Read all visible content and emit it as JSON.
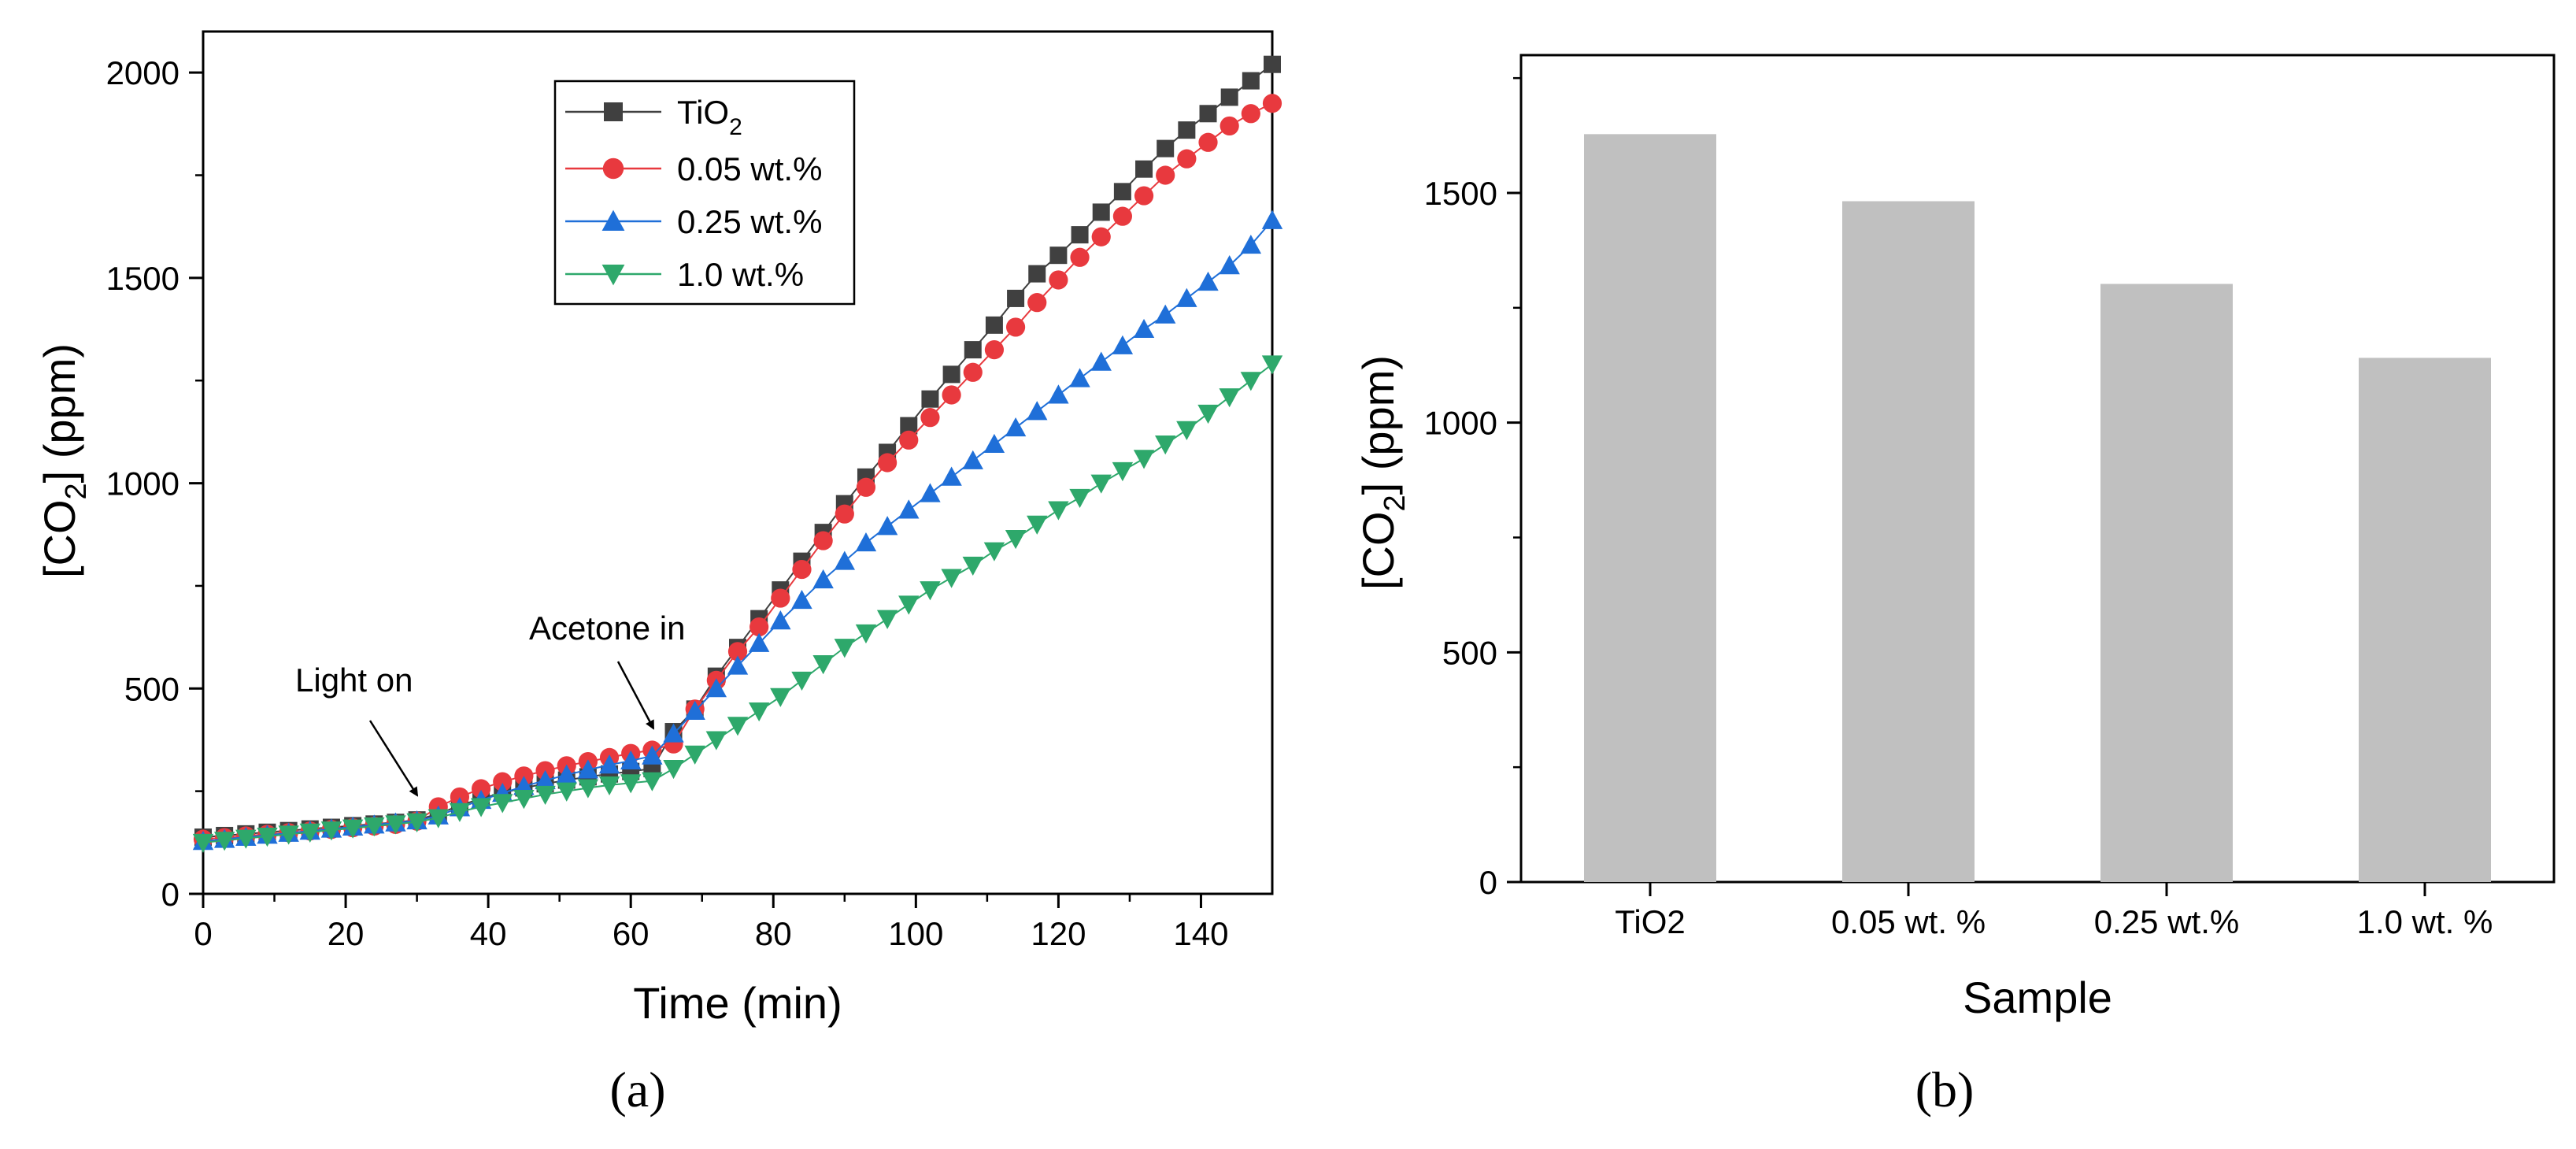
{
  "chart_data": [
    {
      "type": "line",
      "panel_label": "(a)",
      "xlabel": "Time (min)",
      "ylabel_prefix": "[CO",
      "ylabel_sub": "2",
      "ylabel_suffix": "] (ppm)",
      "xlim": [
        0,
        150
      ],
      "ylim": [
        0,
        2100
      ],
      "xticks": [
        0,
        20,
        40,
        60,
        80,
        100,
        120,
        140
      ],
      "yticks": [
        0,
        500,
        1000,
        1500,
        2000
      ],
      "legend_position": "top-center",
      "annotations": [
        {
          "text": "Light on",
          "at": [
            31,
            175
          ],
          "label_at": [
            19,
            505
          ]
        },
        {
          "text": "Acetone in",
          "at": [
            65,
            395
          ],
          "label_at": [
            61,
            640
          ]
        }
      ],
      "series": [
        {
          "name": "TiO2",
          "label_main": "TiO",
          "label_sub": "2",
          "color": "#404040",
          "marker": "square",
          "x": [
            0,
            3,
            6,
            9,
            12,
            15,
            18,
            21,
            24,
            27,
            30,
            33,
            36,
            39,
            42,
            45,
            48,
            51,
            54,
            57,
            60,
            63,
            66,
            69,
            72,
            75,
            78,
            81,
            84,
            87,
            90,
            93,
            96,
            99,
            102,
            105,
            108,
            111,
            114,
            117,
            120,
            123,
            126,
            129,
            132,
            135,
            138,
            141,
            144,
            147,
            150
          ],
          "y": [
            138,
            142,
            146,
            150,
            154,
            158,
            162,
            166,
            170,
            174,
            180,
            195,
            215,
            232,
            246,
            258,
            268,
            277,
            285,
            292,
            298,
            305,
            395,
            450,
            530,
            600,
            670,
            740,
            810,
            880,
            950,
            1015,
            1075,
            1140,
            1205,
            1265,
            1325,
            1385,
            1450,
            1510,
            1555,
            1605,
            1660,
            1710,
            1765,
            1815,
            1860,
            1900,
            1940,
            1980,
            2020
          ]
        },
        {
          "name": "0.05 wt.%",
          "color": "#e8393e",
          "marker": "circle",
          "x": [
            0,
            3,
            6,
            9,
            12,
            15,
            18,
            21,
            24,
            27,
            30,
            33,
            36,
            39,
            42,
            45,
            48,
            51,
            54,
            57,
            60,
            63,
            66,
            69,
            72,
            75,
            78,
            81,
            84,
            87,
            90,
            93,
            96,
            99,
            102,
            105,
            108,
            111,
            114,
            117,
            120,
            123,
            126,
            129,
            132,
            135,
            138,
            141,
            144,
            147,
            150
          ],
          "y": [
            133,
            137,
            141,
            145,
            149,
            153,
            157,
            161,
            165,
            169,
            177,
            212,
            236,
            256,
            273,
            287,
            300,
            312,
            322,
            332,
            342,
            350,
            365,
            450,
            520,
            590,
            650,
            720,
            790,
            860,
            925,
            990,
            1050,
            1105,
            1160,
            1215,
            1270,
            1325,
            1380,
            1440,
            1495,
            1550,
            1600,
            1650,
            1700,
            1750,
            1790,
            1830,
            1870,
            1900,
            1925
          ]
        },
        {
          "name": "0.25 wt.%",
          "color": "#1f6fd8",
          "marker": "triangle-up",
          "x": [
            0,
            3,
            6,
            9,
            12,
            15,
            18,
            21,
            24,
            27,
            30,
            33,
            36,
            39,
            42,
            45,
            48,
            51,
            54,
            57,
            60,
            63,
            66,
            69,
            72,
            75,
            78,
            81,
            84,
            87,
            90,
            93,
            96,
            99,
            102,
            105,
            108,
            111,
            114,
            117,
            120,
            123,
            126,
            129,
            132,
            135,
            138,
            141,
            144,
            147,
            150
          ],
          "y": [
            128,
            133,
            138,
            143,
            148,
            153,
            158,
            163,
            168,
            173,
            178,
            190,
            210,
            228,
            245,
            262,
            276,
            290,
            302,
            314,
            324,
            336,
            390,
            445,
            500,
            555,
            610,
            665,
            715,
            765,
            810,
            855,
            895,
            935,
            975,
            1015,
            1055,
            1095,
            1135,
            1175,
            1215,
            1255,
            1295,
            1335,
            1375,
            1410,
            1450,
            1490,
            1530,
            1580,
            1640
          ]
        },
        {
          "name": "1.0 wt.%",
          "color": "#2ea86b",
          "marker": "triangle-down",
          "x": [
            0,
            3,
            6,
            9,
            12,
            15,
            18,
            21,
            24,
            27,
            30,
            33,
            36,
            39,
            42,
            45,
            48,
            51,
            54,
            57,
            60,
            63,
            66,
            69,
            72,
            75,
            78,
            81,
            84,
            87,
            90,
            93,
            96,
            99,
            102,
            105,
            108,
            111,
            114,
            117,
            120,
            123,
            126,
            129,
            132,
            135,
            138,
            141,
            144,
            147,
            150
          ],
          "y": [
            125,
            130,
            135,
            140,
            145,
            150,
            155,
            160,
            165,
            170,
            175,
            185,
            200,
            212,
            222,
            232,
            242,
            250,
            258,
            265,
            270,
            275,
            305,
            340,
            375,
            410,
            445,
            480,
            520,
            560,
            600,
            635,
            670,
            705,
            740,
            770,
            800,
            835,
            865,
            900,
            935,
            965,
            1000,
            1030,
            1060,
            1095,
            1130,
            1170,
            1210,
            1250,
            1290
          ]
        }
      ]
    },
    {
      "type": "bar",
      "panel_label": "(b)",
      "xlabel": "Sample",
      "ylabel_prefix": "[CO",
      "ylabel_sub": "2",
      "ylabel_suffix": "] (ppm)",
      "categories": [
        "TiO2",
        "0.05 wt. %",
        "0.25 wt.%",
        "1.0 wt. %"
      ],
      "values": [
        1628,
        1482,
        1302,
        1141
      ],
      "ylim": [
        0,
        1800
      ],
      "yticks": [
        0,
        500,
        1000,
        1500
      ],
      "bar_color": "#c0c0c0"
    }
  ]
}
